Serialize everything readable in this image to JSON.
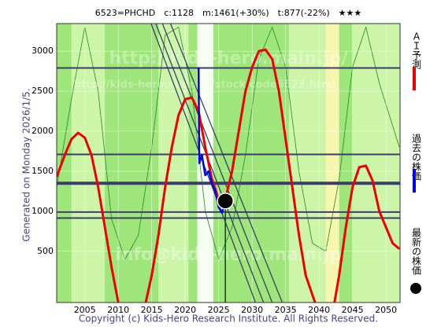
{
  "chart_data": {
    "type": "line",
    "title": "6523=PHCHD　c:1128　m:1461(+30%)　t:877(-22%)　★★★",
    "side_note": "Generated on Monday 2026/1/5.",
    "copyright": "Copyright (c) Kids-Hero Research Institute. All Rights Reserved.",
    "watermarks": [
      "http://kids-hero.main.jp/",
      "http://kids-hero.main.jp/stock/code6523.html",
      "info@kids-hero.main.jp"
    ],
    "xlim": [
      2000.8,
      2052.1
    ],
    "ylim": [
      -140,
      3345
    ],
    "xticks": [
      2005,
      2010,
      2015,
      2020,
      2025,
      2030,
      2035,
      2040,
      2045,
      2050
    ],
    "yticks": [
      500,
      1000,
      1500,
      2000,
      2500,
      3000
    ],
    "bands": [
      {
        "from": 2003,
        "to": 2008,
        "color": "#ccf5a8"
      },
      {
        "from": 2016,
        "to": 2020.5,
        "color": "#ccf5a8"
      },
      {
        "from": 2021.8,
        "to": 2024.2,
        "color": "#f4fff0"
      },
      {
        "from": 2035.5,
        "to": 2041,
        "color": "#ccf5a8"
      },
      {
        "from": 2041,
        "to": 2043,
        "color": "#f6f6b0"
      },
      {
        "from": 2045,
        "to": 2052.1,
        "color": "#ccf5a8"
      }
    ],
    "background_color": "#9ee67a",
    "hlines": [
      {
        "value": 2790,
        "width": 2
      },
      {
        "value": 1710,
        "width": 2
      },
      {
        "value": 1350,
        "width": 4
      },
      {
        "value": 990,
        "width": 2
      },
      {
        "value": 915,
        "width": 2
      }
    ],
    "trend_lines": [
      {
        "x": [
          2014.9,
          2030.5
        ],
        "y": [
          3345,
          -140
        ]
      },
      {
        "x": [
          2015.6,
          2031.7
        ],
        "y": [
          3345,
          -140
        ]
      },
      {
        "x": [
          2016.6,
          2033.0
        ],
        "y": [
          3345,
          -140
        ]
      },
      {
        "x": [
          2017.8,
          2034.5
        ],
        "y": [
          3345,
          -140
        ]
      }
    ],
    "series": [
      {
        "name": "ＡＩ予測",
        "color": "#ee0000",
        "x": [
          2000.8,
          2002,
          2003,
          2004,
          2005,
          2006,
          2007,
          2008,
          2009,
          2010,
          null,
          2014.1,
          2015,
          2016,
          2017,
          2018,
          2019,
          2020,
          2021,
          2022,
          2023,
          2024,
          2025,
          2026,
          2027,
          2028,
          2029,
          2030,
          2031,
          2032,
          2033,
          2034,
          2035,
          2036,
          2037,
          2038,
          2039.4,
          null,
          2042.3,
          2043,
          2044,
          2045,
          2046,
          2047,
          2048,
          2049,
          2050,
          2051,
          2052
        ],
        "values": [
          1430,
          1700,
          1900,
          1980,
          1920,
          1700,
          1300,
          800,
          300,
          -140,
          null,
          -140,
          200,
          700,
          1300,
          1800,
          2200,
          2400,
          2420,
          2250,
          1800,
          1400,
          1150,
          1150,
          1500,
          2000,
          2500,
          2800,
          3000,
          3020,
          2900,
          2500,
          1900,
          1300,
          700,
          200,
          -140,
          null,
          -140,
          200,
          800,
          1300,
          1550,
          1570,
          1380,
          1000,
          800,
          600,
          530
        ]
      },
      {
        "name": "過去の株価",
        "color": "#0000ee",
        "x": [
          2022.0,
          2022.1,
          2022.5,
          2023,
          2023.5,
          2024,
          2024.5,
          2025,
          2025.5,
          2026
        ],
        "values": [
          2800,
          1600,
          1700,
          1450,
          1500,
          1350,
          1250,
          1050,
          980,
          1128
        ]
      },
      {
        "name": "最新の株価",
        "color": "#000000",
        "x": [
          2026.0
        ],
        "values": [
          1128
        ]
      }
    ],
    "indicator": {
      "color": "#228822",
      "x": [
        2000.8,
        2003,
        2005,
        2007,
        2009,
        2011,
        2013,
        2015,
        2017,
        2019,
        2021,
        2023,
        2025,
        2027,
        2029,
        2031,
        2033,
        2035,
        2037,
        2039,
        2041,
        2043,
        2045,
        2047,
        2049,
        2052
      ],
      "values": [
        1300,
        2400,
        3300,
        2500,
        900,
        400,
        700,
        1800,
        3200,
        3300,
        2500,
        1000,
        400,
        800,
        1700,
        2900,
        3300,
        2800,
        1500,
        600,
        500,
        1400,
        2800,
        3300,
        2600,
        1800
      ]
    }
  }
}
